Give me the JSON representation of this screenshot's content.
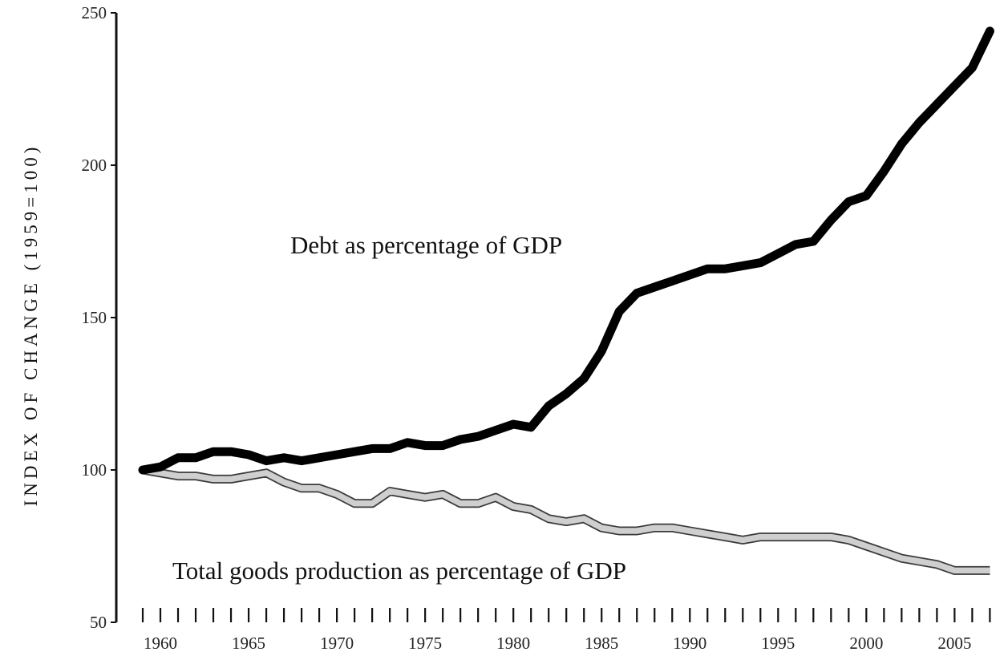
{
  "chart_data": {
    "type": "line",
    "title": "",
    "xlabel": "",
    "ylabel": "INDEX OF CHANGE (1959=100)",
    "xlim": [
      1957.5,
      2007.8
    ],
    "ylim": [
      50,
      250
    ],
    "x_ticks": [
      "1960",
      "1965",
      "1970",
      "1975",
      "1980",
      "1985",
      "1990",
      "1995",
      "2000",
      "2005"
    ],
    "y_ticks": [
      "50",
      "100",
      "150",
      "200",
      "250"
    ],
    "grid": false,
    "legend": "none",
    "x": [
      1959,
      1960,
      1961,
      1962,
      1963,
      1964,
      1965,
      1966,
      1967,
      1968,
      1969,
      1970,
      1971,
      1972,
      1973,
      1974,
      1975,
      1976,
      1977,
      1978,
      1979,
      1980,
      1981,
      1982,
      1983,
      1984,
      1985,
      1986,
      1987,
      1988,
      1989,
      1990,
      1991,
      1992,
      1993,
      1994,
      1995,
      1996,
      1997,
      1998,
      1999,
      2000,
      2001,
      2002,
      2003,
      2004,
      2005,
      2006,
      2007
    ],
    "series": [
      {
        "name": "Debt as percentage of GDP",
        "color": "#000000",
        "values": [
          100,
          101,
          104,
          104,
          106,
          106,
          105,
          103,
          104,
          103,
          104,
          105,
          106,
          107,
          107,
          109,
          108,
          108,
          110,
          111,
          113,
          115,
          114,
          121,
          125,
          130,
          139,
          152,
          158,
          160,
          162,
          164,
          166,
          166,
          167,
          168,
          171,
          174,
          175,
          182,
          188,
          190,
          198,
          207,
          214,
          220,
          226,
          232,
          244
        ]
      },
      {
        "name": "Total goods production as percentage of GDP",
        "color": "#cfcfcf",
        "values": [
          100,
          99,
          98,
          98,
          97,
          97,
          98,
          99,
          96,
          94,
          94,
          92,
          89,
          89,
          93,
          92,
          91,
          92,
          89,
          89,
          91,
          88,
          87,
          84,
          83,
          84,
          81,
          80,
          80,
          81,
          81,
          80,
          79,
          78,
          77,
          78,
          78,
          78,
          78,
          78,
          77,
          75,
          73,
          71,
          70,
          69,
          67,
          67,
          67
        ]
      }
    ]
  }
}
